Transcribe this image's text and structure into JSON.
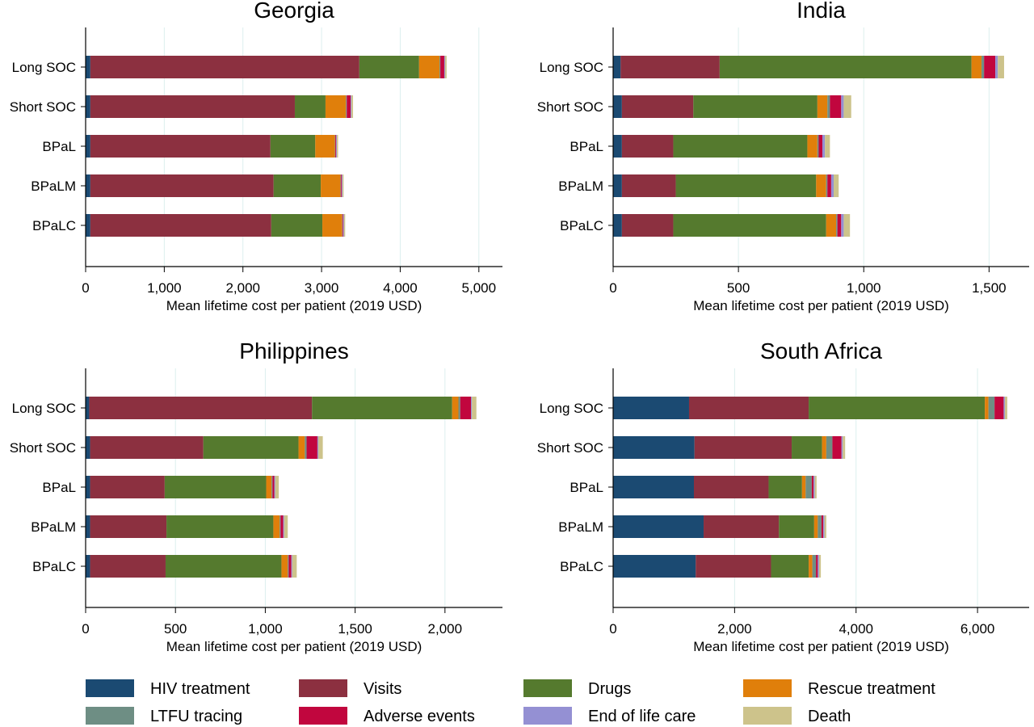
{
  "figure": {
    "components": [
      {
        "key": "hiv",
        "label": "HIV treatment",
        "color": "#1b4a72"
      },
      {
        "key": "visits",
        "label": "Visits",
        "color": "#8c3040"
      },
      {
        "key": "drugs",
        "label": "Drugs",
        "color": "#557a2e"
      },
      {
        "key": "rescue",
        "label": "Rescue treatment",
        "color": "#e07f0b"
      },
      {
        "key": "ltfu",
        "label": "LTFU tracing",
        "color": "#6e8e84"
      },
      {
        "key": "adverse",
        "label": "Adverse events",
        "color": "#c1063e"
      },
      {
        "key": "eol",
        "label": "End of life care",
        "color": "#9490d3"
      },
      {
        "key": "death",
        "label": "Death",
        "color": "#cdc38b"
      }
    ]
  },
  "chart_data": [
    {
      "type": "bar",
      "orientation": "horizontal",
      "stacked": true,
      "title": "Georgia",
      "xlabel": "Mean lifetime cost per patient (2019 USD)",
      "xlim": [
        0,
        5300
      ],
      "xticks": [
        0,
        1000,
        2000,
        3000,
        4000,
        5000
      ],
      "xtick_labels": [
        "0",
        "1,000",
        "2,000",
        "3,000",
        "4,000",
        "5,000"
      ],
      "grid": true,
      "categories": [
        "Long SOC",
        "Short SOC",
        "BPaL",
        "BPaLM",
        "BPaLC"
      ],
      "series": [
        {
          "name": "HIV treatment",
          "values": [
            60,
            60,
            60,
            60,
            60
          ]
        },
        {
          "name": "Visits",
          "values": [
            3420,
            2600,
            2290,
            2330,
            2300
          ]
        },
        {
          "name": "Drugs",
          "values": [
            760,
            390,
            570,
            600,
            650
          ]
        },
        {
          "name": "Rescue treatment",
          "values": [
            260,
            260,
            250,
            250,
            250
          ]
        },
        {
          "name": "LTFU tracing",
          "values": [
            10,
            10,
            5,
            5,
            5
          ]
        },
        {
          "name": "Adverse events",
          "values": [
            50,
            50,
            10,
            10,
            10
          ]
        },
        {
          "name": "End of life care",
          "values": [
            10,
            10,
            10,
            10,
            10
          ]
        },
        {
          "name": "Death",
          "values": [
            20,
            20,
            15,
            15,
            15
          ]
        }
      ]
    },
    {
      "type": "bar",
      "orientation": "horizontal",
      "stacked": true,
      "title": "India",
      "xlabel": "Mean lifetime cost per patient (2019 USD)",
      "xlim": [
        0,
        1660
      ],
      "xticks": [
        0,
        500,
        1000,
        1500
      ],
      "xtick_labels": [
        "0",
        "500",
        "1,000",
        "1,500"
      ],
      "grid": true,
      "categories": [
        "Long SOC",
        "Short SOC",
        "BPaL",
        "BPaLM",
        "BPaLC"
      ],
      "series": [
        {
          "name": "HIV treatment",
          "values": [
            30,
            35,
            35,
            35,
            35
          ]
        },
        {
          "name": "Visits",
          "values": [
            395,
            285,
            205,
            215,
            205
          ]
        },
        {
          "name": "Drugs",
          "values": [
            1005,
            495,
            535,
            560,
            610
          ]
        },
        {
          "name": "Rescue treatment",
          "values": [
            40,
            40,
            40,
            40,
            40
          ]
        },
        {
          "name": "LTFU tracing",
          "values": [
            10,
            10,
            5,
            5,
            5
          ]
        },
        {
          "name": "Adverse events",
          "values": [
            45,
            45,
            15,
            15,
            15
          ]
        },
        {
          "name": "End of life care",
          "values": [
            10,
            10,
            10,
            10,
            10
          ]
        },
        {
          "name": "Death",
          "values": [
            25,
            30,
            20,
            20,
            25
          ]
        }
      ]
    },
    {
      "type": "bar",
      "orientation": "horizontal",
      "stacked": true,
      "title": "Philippines",
      "xlabel": "Mean lifetime cost per patient (2019 USD)",
      "xlim": [
        0,
        2320
      ],
      "xticks": [
        0,
        500,
        1000,
        1500,
        2000
      ],
      "xtick_labels": [
        "0",
        "500",
        "1,000",
        "1,500",
        "2,000"
      ],
      "grid": true,
      "categories": [
        "Long SOC",
        "Short SOC",
        "BPaL",
        "BPaLM",
        "BPaLC"
      ],
      "series": [
        {
          "name": "HIV treatment",
          "values": [
            20,
            25,
            25,
            25,
            25
          ]
        },
        {
          "name": "Visits",
          "values": [
            1240,
            630,
            415,
            425,
            420
          ]
        },
        {
          "name": "Drugs",
          "values": [
            780,
            530,
            565,
            595,
            645
          ]
        },
        {
          "name": "Rescue treatment",
          "values": [
            35,
            35,
            30,
            35,
            35
          ]
        },
        {
          "name": "LTFU tracing",
          "values": [
            10,
            10,
            5,
            5,
            5
          ]
        },
        {
          "name": "Adverse events",
          "values": [
            60,
            60,
            10,
            15,
            15
          ]
        },
        {
          "name": "End of life care",
          "values": [
            5,
            5,
            5,
            5,
            5
          ]
        },
        {
          "name": "Death",
          "values": [
            25,
            25,
            20,
            20,
            25
          ]
        }
      ]
    },
    {
      "type": "bar",
      "orientation": "horizontal",
      "stacked": true,
      "title": "South Africa",
      "xlabel": "Mean lifetime cost per patient (2019 USD)",
      "xlim": [
        0,
        6850
      ],
      "xticks": [
        0,
        2000,
        4000,
        6000
      ],
      "xtick_labels": [
        "0",
        "2,000",
        "4,000",
        "6,000"
      ],
      "grid": true,
      "categories": [
        "Long SOC",
        "Short SOC",
        "BPaL",
        "BPaLM",
        "BPaLC"
      ],
      "series": [
        {
          "name": "HIV treatment",
          "values": [
            1250,
            1340,
            1330,
            1490,
            1360
          ]
        },
        {
          "name": "Visits",
          "values": [
            1970,
            1600,
            1230,
            1240,
            1240
          ]
        },
        {
          "name": "Drugs",
          "values": [
            2900,
            500,
            550,
            580,
            620
          ]
        },
        {
          "name": "Rescue treatment",
          "values": [
            60,
            70,
            60,
            60,
            60
          ]
        },
        {
          "name": "LTFU tracing",
          "values": [
            100,
            100,
            100,
            60,
            60
          ]
        },
        {
          "name": "Adverse events",
          "values": [
            150,
            150,
            30,
            30,
            30
          ]
        },
        {
          "name": "End of life care",
          "values": [
            20,
            20,
            20,
            20,
            20
          ]
        },
        {
          "name": "Death",
          "values": [
            40,
            40,
            30,
            30,
            30
          ]
        }
      ]
    }
  ]
}
